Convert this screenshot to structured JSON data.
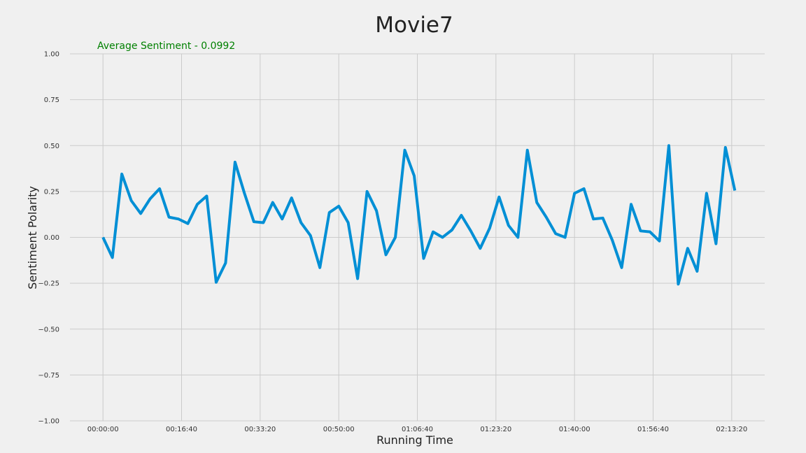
{
  "chart_data": {
    "type": "line",
    "title": "Movie7",
    "xlabel": "Running Time",
    "ylabel": "Sentiment Polarity",
    "annotation": "Average Sentiment - 0.0992",
    "x_ticks": [
      "00:00:00",
      "00:16:40",
      "00:33:20",
      "00:50:00",
      "01:06:40",
      "01:23:20",
      "01:40:00",
      "01:56:40",
      "02:13:20"
    ],
    "x_tick_values": [
      0,
      1000,
      2000,
      3000,
      4000,
      5000,
      6000,
      7000,
      8000
    ],
    "xlim": [
      -420,
      8420
    ],
    "y_ticks": [
      "1.00",
      "0.75",
      "0.50",
      "0.25",
      "0.00",
      "−0.25",
      "−0.50",
      "−0.75",
      "−1.00"
    ],
    "y_tick_values": [
      1.0,
      0.75,
      0.5,
      0.25,
      0.0,
      -0.25,
      -0.5,
      -0.75,
      -1.0
    ],
    "ylim": [
      -1.0,
      1.0
    ],
    "grid": true,
    "legend": "none",
    "series": [
      {
        "color": "#008fd5",
        "x": [
          0,
          120,
          240,
          360,
          480,
          600,
          720,
          840,
          960,
          1080,
          1200,
          1320,
          1440,
          1560,
          1680,
          1800,
          1920,
          2040,
          2160,
          2280,
          2400,
          2520,
          2640,
          2760,
          2880,
          3000,
          3120,
          3240,
          3360,
          3480,
          3600,
          3720,
          3840,
          3960,
          4080,
          4200,
          4320,
          4440,
          4560,
          4680,
          4800,
          4920,
          5040,
          5160,
          5280,
          5400,
          5520,
          5640,
          5760,
          5880,
          6000,
          6120,
          6240,
          6360,
          6480,
          6600,
          6720,
          6840,
          6960,
          7080,
          7200,
          7320,
          7440,
          7560,
          7680,
          7800,
          7920,
          8040
        ],
        "values": [
          0.0,
          -0.11,
          0.345,
          0.2,
          0.13,
          0.21,
          0.265,
          0.11,
          0.1,
          0.075,
          0.18,
          0.225,
          -0.245,
          -0.14,
          0.41,
          0.24,
          0.085,
          0.08,
          0.19,
          0.1,
          0.215,
          0.08,
          0.01,
          -0.165,
          0.135,
          0.17,
          0.08,
          -0.225,
          0.25,
          0.145,
          -0.095,
          0.0,
          0.475,
          0.335,
          -0.115,
          0.03,
          0.0,
          0.04,
          0.12,
          0.035,
          -0.06,
          0.05,
          0.22,
          0.065,
          0.0,
          0.475,
          0.19,
          0.11,
          0.02,
          0.0,
          0.24,
          0.265,
          0.1,
          0.105,
          -0.015,
          -0.165,
          0.18,
          0.035,
          0.03,
          -0.02,
          0.5,
          -0.255,
          -0.06,
          -0.185,
          0.24,
          -0.035,
          0.49,
          0.255
        ]
      }
    ]
  }
}
